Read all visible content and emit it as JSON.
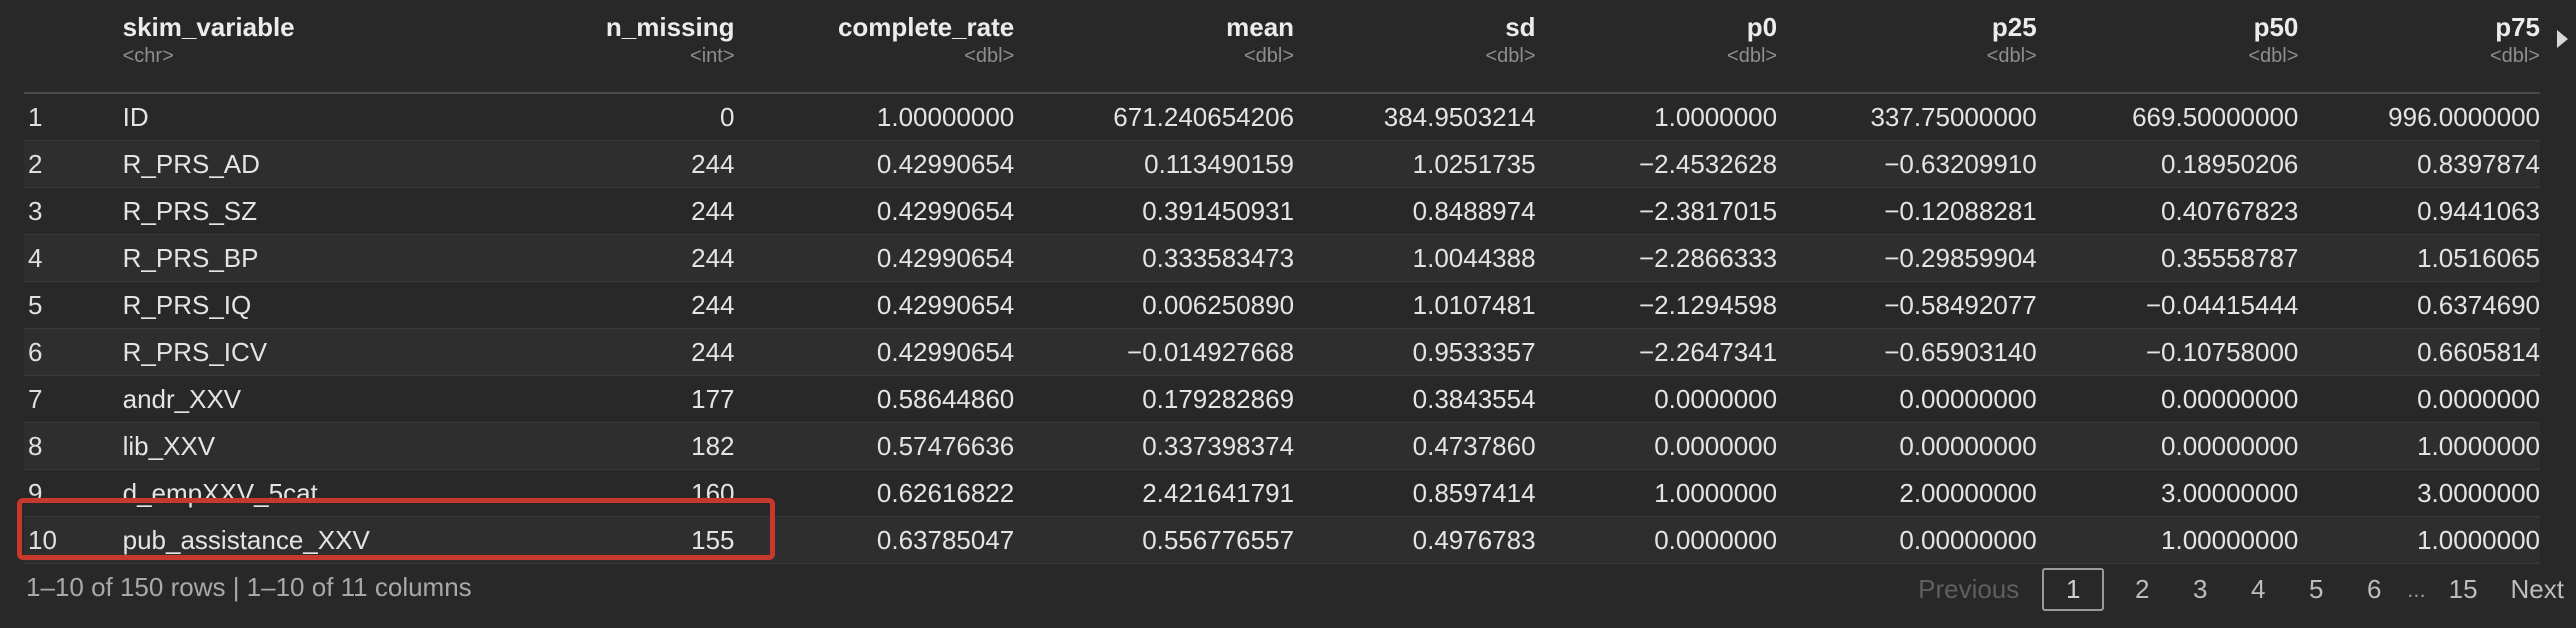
{
  "columns": [
    {
      "name": "",
      "type": ""
    },
    {
      "name": "skim_variable",
      "type": "<chr>"
    },
    {
      "name": "n_missing",
      "type": "<int>"
    },
    {
      "name": "complete_rate",
      "type": "<dbl>"
    },
    {
      "name": "mean",
      "type": "<dbl>"
    },
    {
      "name": "sd",
      "type": "<dbl>"
    },
    {
      "name": "p0",
      "type": "<dbl>"
    },
    {
      "name": "p25",
      "type": "<dbl>"
    },
    {
      "name": "p50",
      "type": "<dbl>"
    },
    {
      "name": "p75",
      "type": "<dbl>"
    }
  ],
  "rows": [
    [
      "1",
      "ID",
      "0",
      "1.00000000",
      "671.240654206",
      "384.9503214",
      "1.0000000",
      "337.75000000",
      "669.50000000",
      "996.0000000"
    ],
    [
      "2",
      "R_PRS_AD",
      "244",
      "0.42990654",
      "0.113490159",
      "1.0251735",
      "−2.4532628",
      "−0.63209910",
      "0.18950206",
      "0.8397874"
    ],
    [
      "3",
      "R_PRS_SZ",
      "244",
      "0.42990654",
      "0.391450931",
      "0.8488974",
      "−2.3817015",
      "−0.12088281",
      "0.40767823",
      "0.9441063"
    ],
    [
      "4",
      "R_PRS_BP",
      "244",
      "0.42990654",
      "0.333583473",
      "1.0044388",
      "−2.2866333",
      "−0.29859904",
      "0.35558787",
      "1.0516065"
    ],
    [
      "5",
      "R_PRS_IQ",
      "244",
      "0.42990654",
      "0.006250890",
      "1.0107481",
      "−2.1294598",
      "−0.58492077",
      "−0.04415444",
      "0.6374690"
    ],
    [
      "6",
      "R_PRS_ICV",
      "244",
      "0.42990654",
      "−0.014927668",
      "0.9533357",
      "−2.2647341",
      "−0.65903140",
      "−0.10758000",
      "0.6605814"
    ],
    [
      "7",
      "andr_XXV",
      "177",
      "0.58644860",
      "0.179282869",
      "0.3843554",
      "0.0000000",
      "0.00000000",
      "0.00000000",
      "0.0000000"
    ],
    [
      "8",
      "lib_XXV",
      "182",
      "0.57476636",
      "0.337398374",
      "0.4737860",
      "0.0000000",
      "0.00000000",
      "0.00000000",
      "1.0000000"
    ],
    [
      "9",
      "d_empXXV_5cat",
      "160",
      "0.62616822",
      "2.421641791",
      "0.8597414",
      "1.0000000",
      "2.00000000",
      "3.00000000",
      "3.0000000"
    ],
    [
      "10",
      "pub_assistance_XXV",
      "155",
      "0.63785047",
      "0.556776557",
      "0.4976783",
      "0.0000000",
      "0.00000000",
      "1.00000000",
      "1.0000000"
    ]
  ],
  "footer": {
    "summary": "1–10 of 150 rows | 1–10 of 11 columns",
    "previous_label": "Previous",
    "pages": [
      "1",
      "2",
      "3",
      "4",
      "5",
      "6"
    ],
    "ellipsis": "...",
    "last_page": "15",
    "next_label": "Next"
  },
  "colors": {
    "background": "#282828",
    "highlight_border": "#c8392b"
  },
  "icons": {
    "scroll_right": "triangle-right-icon"
  }
}
